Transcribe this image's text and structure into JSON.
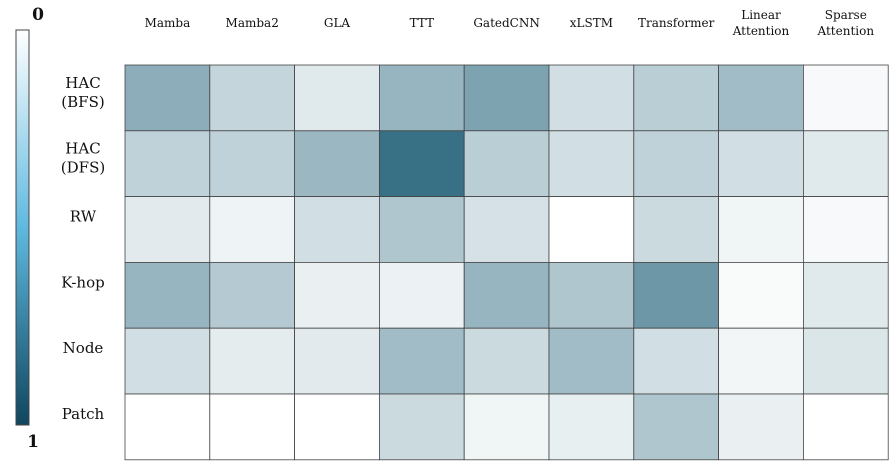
{
  "chart_data": {
    "type": "heatmap",
    "columns": [
      "Mamba",
      "Mamba2",
      "GLA",
      "TTT",
      "GatedCNN",
      "xLSTM",
      "Transformer",
      "Linear Attention",
      "Sparse Attention"
    ],
    "rows": [
      "HAC (BFS)",
      "HAC (DFS)",
      "RW",
      "K-hop",
      "Node",
      "Patch"
    ],
    "values": [
      [
        0.55,
        0.28,
        0.15,
        0.5,
        0.62,
        0.22,
        0.33,
        0.45,
        0.04
      ],
      [
        0.3,
        0.3,
        0.48,
        0.95,
        0.33,
        0.22,
        0.3,
        0.22,
        0.15
      ],
      [
        0.14,
        0.08,
        0.22,
        0.38,
        0.2,
        0.0,
        0.25,
        0.07,
        0.04
      ],
      [
        0.5,
        0.36,
        0.1,
        0.09,
        0.5,
        0.38,
        0.7,
        0.03,
        0.15
      ],
      [
        0.22,
        0.13,
        0.14,
        0.45,
        0.25,
        0.45,
        0.22,
        0.06,
        0.17
      ],
      [
        0.0,
        0.0,
        0.0,
        0.25,
        0.07,
        0.11,
        0.38,
        0.1,
        0.0
      ]
    ],
    "colorbar": {
      "min_label": "0",
      "max_label": "1",
      "range": [
        0,
        1
      ]
    },
    "colors": {
      "low": "#ffffff",
      "mid": "#5fb9e0",
      "high": "#10465f",
      "cell_high": "#2e6a80",
      "grid": "#444444"
    }
  }
}
